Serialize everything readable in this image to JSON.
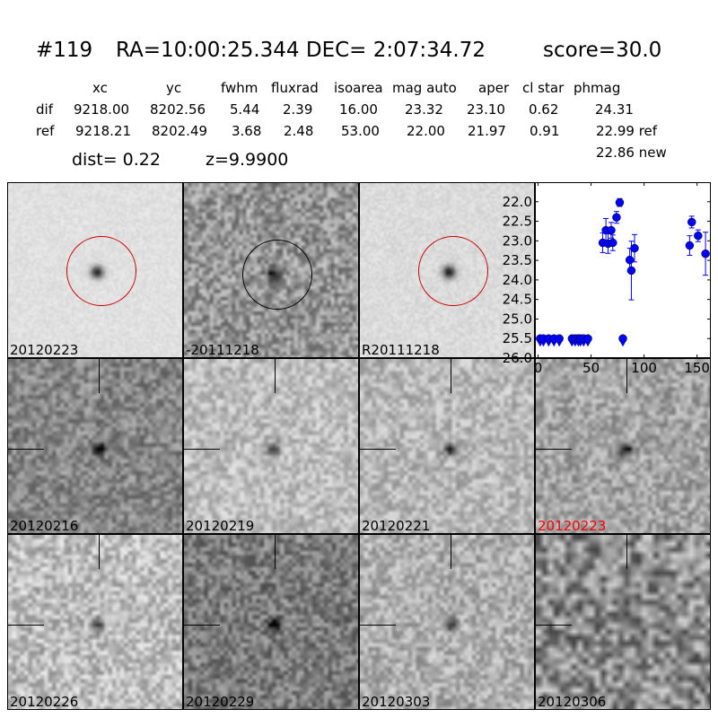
{
  "header": {
    "id": "#119",
    "coords": "RA=10:00:25.344 DEC= 2:07:34.72",
    "score": "score=30.0"
  },
  "table": {
    "columns": [
      "xc",
      "yc",
      "fwhm",
      "fluxrad",
      "isoarea",
      "mag auto",
      "aper",
      "cl star",
      "phmag"
    ],
    "rows": [
      {
        "label": "dif",
        "values": [
          "9218.00",
          "8202.56",
          "5.44",
          "2.39",
          "16.00",
          "23.32",
          "23.10",
          "0.62",
          "24.31"
        ]
      },
      {
        "label": "ref",
        "values": [
          "9218.21",
          "8202.49",
          "3.68",
          "2.48",
          "53.00",
          "22.00",
          "21.97",
          "0.91",
          "22.99 ref"
        ]
      }
    ],
    "extra_phmag": "22.86 new",
    "dist": "dist=  0.22",
    "z": "z=9.9900"
  },
  "stamps_top": [
    {
      "label": "20120223",
      "circle_color": "#cc0000"
    },
    {
      "label": "-20111218",
      "circle_color": "#000000"
    },
    {
      "label": "R20111218",
      "circle_color": "#cc0000"
    }
  ],
  "stamps": [
    {
      "label": "20120216",
      "label_color": "#000000"
    },
    {
      "label": "20120219",
      "label_color": "#000000"
    },
    {
      "label": "20120221",
      "label_color": "#000000"
    },
    {
      "label": "20120223",
      "label_color": "#ff0000"
    },
    {
      "label": "20120226",
      "label_color": "#000000"
    },
    {
      "label": "20120229",
      "label_color": "#000000"
    },
    {
      "label": "20120303",
      "label_color": "#000000"
    },
    {
      "label": "20120306",
      "label_color": "#000000"
    }
  ],
  "chart_data": {
    "type": "scatter",
    "title": "",
    "xlabel": "",
    "ylabel": "",
    "xlim": [
      -3,
      163
    ],
    "ylim": [
      26.0,
      21.5
    ],
    "y_inverted": true,
    "x_ticks": [
      "0",
      "50",
      "100",
      "150"
    ],
    "y_ticks": [
      "22.0",
      "22.5",
      "23.0",
      "23.5",
      "24.0",
      "24.5",
      "25.0",
      "25.5",
      "26.0"
    ],
    "color": "#0000ff",
    "detections": [
      {
        "x": 61,
        "y": 23.05,
        "err": 0.25
      },
      {
        "x": 64,
        "y": 22.73,
        "err": 0.3
      },
      {
        "x": 66,
        "y": 23.07,
        "err": 0.25
      },
      {
        "x": 69,
        "y": 22.73,
        "err": 0.2
      },
      {
        "x": 70.5,
        "y": 23.05,
        "err": 0.2
      },
      {
        "x": 74,
        "y": 22.4,
        "err": 0.15
      },
      {
        "x": 77,
        "y": 22.02,
        "err": 0.1
      },
      {
        "x": 86.5,
        "y": 23.49,
        "err": 0.3
      },
      {
        "x": 88,
        "y": 23.76,
        "err": 0.75
      },
      {
        "x": 91,
        "y": 23.19,
        "err": 0.35
      },
      {
        "x": 143,
        "y": 23.12,
        "err": 0.25
      },
      {
        "x": 145,
        "y": 22.52,
        "err": 0.15
      },
      {
        "x": 151,
        "y": 22.87,
        "err": 0.15
      },
      {
        "x": 158,
        "y": 23.33,
        "err": 0.55
      }
    ],
    "upper_limits": [
      {
        "x": 2,
        "y": 25.5
      },
      {
        "x": 5,
        "y": 25.5
      },
      {
        "x": 10,
        "y": 25.5
      },
      {
        "x": 15,
        "y": 25.5
      },
      {
        "x": 20,
        "y": 25.5
      },
      {
        "x": 32,
        "y": 25.5
      },
      {
        "x": 35,
        "y": 25.5
      },
      {
        "x": 38,
        "y": 25.5
      },
      {
        "x": 40,
        "y": 25.5
      },
      {
        "x": 43,
        "y": 25.5
      },
      {
        "x": 47,
        "y": 25.5
      },
      {
        "x": 80,
        "y": 25.5
      }
    ]
  }
}
